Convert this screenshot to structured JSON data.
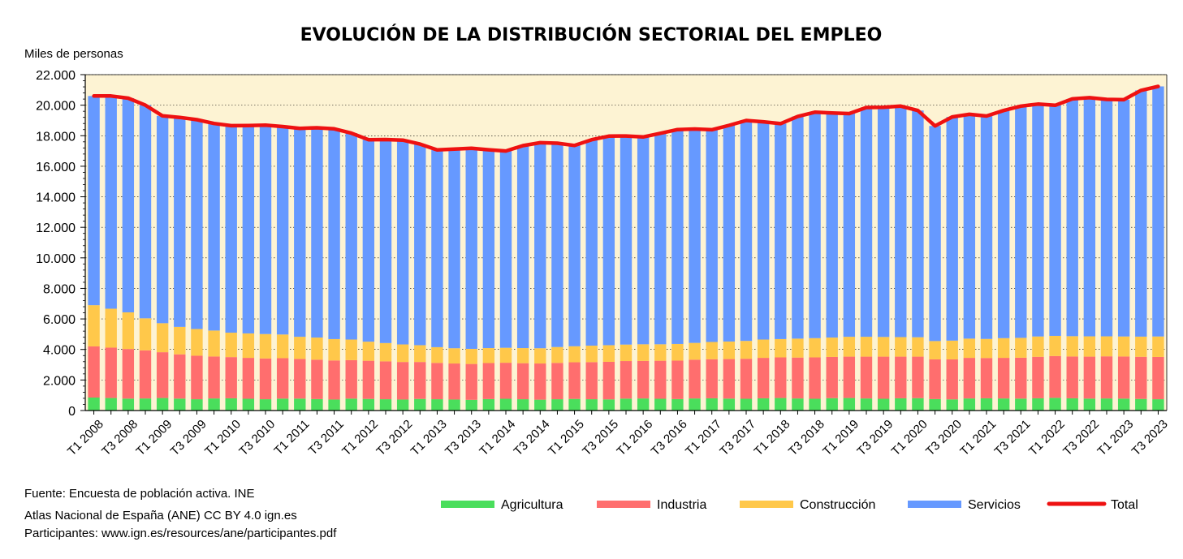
{
  "chart_data": {
    "type": "bar",
    "title": "EVOLUCIÓN DE LA DISTRIBUCIÓN SECTORIAL DEL EMPLEO",
    "ylabel": "Miles de personas",
    "ylim": [
      0,
      22000
    ],
    "yticks": [
      "0",
      "2.000",
      "4.000",
      "6.000",
      "8.000",
      "10.000",
      "12.000",
      "14.000",
      "16.000",
      "18.000",
      "20.000",
      "22.000"
    ],
    "stacked": true,
    "grid": true,
    "legend_position": "bottom",
    "categories": [
      "T1 2008",
      "T2 2008",
      "T3 2008",
      "T4 2008",
      "T1 2009",
      "T2 2009",
      "T3 2009",
      "T4 2009",
      "T1 2010",
      "T2 2010",
      "T3 2010",
      "T4 2010",
      "T1 2011",
      "T2 2011",
      "T3 2011",
      "T4 2011",
      "T1 2012",
      "T2 2012",
      "T3 2012",
      "T4 2012",
      "T1 2013",
      "T2 2013",
      "T3 2013",
      "T4 2013",
      "T1 2014",
      "T2 2014",
      "T3 2014",
      "T4 2014",
      "T1 2015",
      "T2 2015",
      "T3 2015",
      "T4 2015",
      "T1 2016",
      "T2 2016",
      "T3 2016",
      "T4 2016",
      "T1 2017",
      "T2 2017",
      "T3 2017",
      "T4 2017",
      "T1 2018",
      "T2 2018",
      "T3 2018",
      "T4 2018",
      "T1 2019",
      "T2 2019",
      "T3 2019",
      "T4 2019",
      "T1 2020",
      "T2 2020",
      "T3 2020",
      "T4 2020",
      "T1 2021",
      "T2 2021",
      "T3 2021",
      "T4 2021",
      "T1 2022",
      "T2 2022",
      "T3 2022",
      "T4 2022",
      "T1 2023",
      "T2 2023",
      "T3 2023"
    ],
    "xtick_labels": [
      "T1 2008",
      "",
      "T3 2008",
      "",
      "T1 2009",
      "",
      "T3 2009",
      "",
      "T1 2010",
      "",
      "T3 2010",
      "",
      "T1 2011",
      "",
      "T3 2011",
      "",
      "T1 2012",
      "",
      "T3 2012",
      "",
      "T1 2013",
      "",
      "T3 2013",
      "",
      "T1 2014",
      "",
      "T3 2014",
      "",
      "T1 2015",
      "",
      "T3 2015",
      "",
      "T1 2016",
      "",
      "T3 2016",
      "",
      "T1 2017",
      "",
      "T3 2017",
      "",
      "T1 2018",
      "",
      "T3 2018",
      "",
      "T1 2019",
      "",
      "T3 2019",
      "",
      "T1 2020",
      "",
      "T3 2020",
      "",
      "T1 2021",
      "",
      "T3 2021",
      "",
      "T1 2022",
      "",
      "T3 2022",
      "",
      "T1 2023",
      "",
      "T3 2023"
    ],
    "series": [
      {
        "name": "Agricultura",
        "color": "#4ade5c",
        "values": [
          850,
          820,
          780,
          790,
          820,
          780,
          740,
          790,
          800,
          770,
          740,
          780,
          780,
          750,
          720,
          780,
          760,
          740,
          720,
          760,
          740,
          720,
          700,
          750,
          770,
          740,
          710,
          740,
          760,
          740,
          730,
          780,
          790,
          770,
          750,
          790,
          800,
          780,
          770,
          800,
          820,
          790,
          770,
          810,
          820,
          790,
          770,
          800,
          810,
          750,
          730,
          790,
          800,
          790,
          780,
          800,
          830,
          800,
          780,
          790,
          780,
          760,
          740
        ]
      },
      {
        "name": "Industria",
        "color": "#ff6e6e",
        "values": [
          3350,
          3300,
          3250,
          3150,
          3000,
          2900,
          2850,
          2750,
          2700,
          2680,
          2670,
          2650,
          2600,
          2580,
          2560,
          2520,
          2500,
          2480,
          2460,
          2420,
          2380,
          2360,
          2350,
          2360,
          2360,
          2360,
          2370,
          2380,
          2400,
          2430,
          2460,
          2460,
          2460,
          2490,
          2520,
          2540,
          2560,
          2590,
          2620,
          2650,
          2660,
          2680,
          2710,
          2700,
          2710,
          2740,
          2760,
          2730,
          2720,
          2600,
          2620,
          2660,
          2640,
          2660,
          2680,
          2720,
          2740,
          2740,
          2750,
          2760,
          2760,
          2760,
          2770
        ]
      },
      {
        "name": "Construcción",
        "color": "#ffc84a",
        "values": [
          2700,
          2550,
          2400,
          2100,
          1900,
          1800,
          1750,
          1700,
          1600,
          1600,
          1600,
          1550,
          1450,
          1450,
          1400,
          1350,
          1250,
          1200,
          1150,
          1100,
          1030,
          1000,
          990,
          980,
          980,
          990,
          1000,
          1040,
          1050,
          1080,
          1090,
          1080,
          1090,
          1080,
          1090,
          1100,
          1130,
          1150,
          1170,
          1200,
          1200,
          1240,
          1260,
          1270,
          1300,
          1300,
          1290,
          1280,
          1270,
          1200,
          1230,
          1260,
          1250,
          1290,
          1300,
          1330,
          1320,
          1330,
          1330,
          1310,
          1310,
          1320,
          1340
        ]
      },
      {
        "name": "Servicios",
        "color": "#6699ff",
        "values": [
          13700,
          13930,
          14030,
          13960,
          13580,
          13720,
          13710,
          13560,
          13560,
          13620,
          13680,
          13620,
          13650,
          13740,
          13770,
          13520,
          13230,
          13330,
          13380,
          13170,
          12920,
          13040,
          13140,
          12990,
          12890,
          13260,
          13460,
          13350,
          13150,
          13490,
          13690,
          13660,
          13580,
          13820,
          14040,
          14010,
          13900,
          14160,
          14440,
          14260,
          14110,
          14550,
          14800,
          14710,
          14620,
          15020,
          15040,
          15130,
          14850,
          14090,
          14650,
          14690,
          14600,
          14900,
          15180,
          15220,
          15100,
          15540,
          15630,
          15520,
          15510,
          16130,
          16380
        ]
      },
      {
        "name": "Total",
        "color": "#ee1111",
        "type": "line",
        "values": [
          20600,
          20600,
          20460,
          20000,
          19300,
          19200,
          19050,
          18800,
          18660,
          18670,
          18690,
          18600,
          18480,
          18520,
          18450,
          18170,
          17740,
          17750,
          17710,
          17450,
          17070,
          17120,
          17180,
          17080,
          17000,
          17350,
          17540,
          17510,
          17360,
          17740,
          17970,
          17980,
          17920,
          18160,
          18400,
          18440,
          18390,
          18680,
          19000,
          18910,
          18790,
          19260,
          19540,
          19490,
          19450,
          19850,
          19860,
          19940,
          19650,
          18640,
          19230,
          19400,
          19290,
          19650,
          19940,
          20070,
          19990,
          20410,
          20490,
          20380,
          20360,
          20970,
          21230
        ]
      }
    ]
  },
  "legend": {
    "items": [
      {
        "label": "Agricultura",
        "color": "#4ade5c"
      },
      {
        "label": "Industria",
        "color": "#ff6e6e"
      },
      {
        "label": "Construcción",
        "color": "#ffc84a"
      },
      {
        "label": "Servicios",
        "color": "#6699ff"
      },
      {
        "label": "Total",
        "color": "#ee1111"
      }
    ]
  },
  "footer": {
    "source": "Fuente: Encuesta de población activa. INE",
    "license": "Atlas Nacional de España (ANE) CC BY 4.0 ign.es",
    "participants": "Participantes: www.ign.es/resources/ane/participantes.pdf"
  },
  "colors": {
    "plot_background": "#fdf3d3",
    "grid": "#000000"
  }
}
